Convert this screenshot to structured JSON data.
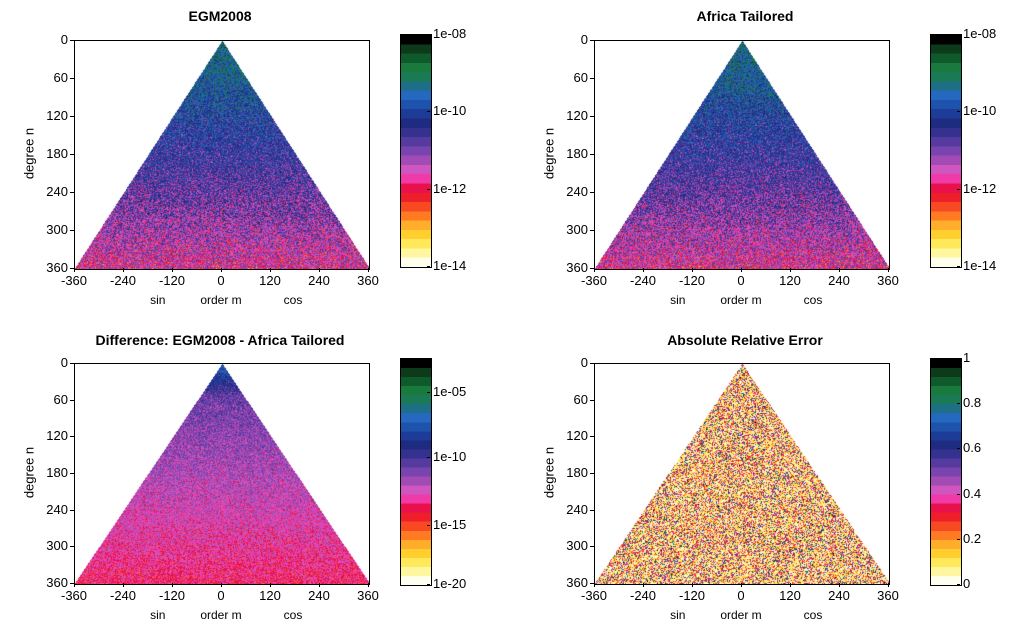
{
  "chart_data": [
    {
      "type": "heatmap",
      "title": "EGM2008",
      "ylabel": "degree n",
      "xlabel": "order m",
      "x_left_label": "sin",
      "x_right_label": "cos",
      "x_ticks": [
        "-360",
        "-240",
        "-120",
        "0",
        "120",
        "240",
        "360"
      ],
      "y_ticks": [
        "0",
        "60",
        "120",
        "180",
        "240",
        "300",
        "360"
      ],
      "xlim": [
        -360,
        360
      ],
      "ylim": [
        0,
        360
      ],
      "colorbar": {
        "scale": "log",
        "ticks": [
          "1e-08",
          "1e-10",
          "1e-12",
          "1e-14"
        ],
        "range": [
          1e-14,
          1e-08
        ]
      },
      "pattern": "magnitude decays with degree n; spherical-harmonic triangle"
    },
    {
      "type": "heatmap",
      "title": "Africa Tailored",
      "ylabel": "degree n",
      "xlabel": "order m",
      "x_left_label": "sin",
      "x_right_label": "cos",
      "x_ticks": [
        "-360",
        "-240",
        "-120",
        "0",
        "120",
        "240",
        "360"
      ],
      "y_ticks": [
        "0",
        "60",
        "120",
        "180",
        "240",
        "300",
        "360"
      ],
      "xlim": [
        -360,
        360
      ],
      "ylim": [
        0,
        360
      ],
      "colorbar": {
        "scale": "log",
        "ticks": [
          "1e-08",
          "1e-10",
          "1e-12",
          "1e-14"
        ],
        "range": [
          1e-14,
          1e-08
        ]
      },
      "pattern": "magnitude decays with degree n; spherical-harmonic triangle"
    },
    {
      "type": "heatmap",
      "title": "Difference: EGM2008 - Africa Tailored",
      "ylabel": "degree n",
      "xlabel": "order m",
      "x_left_label": "sin",
      "x_right_label": "cos",
      "x_ticks": [
        "-360",
        "-240",
        "-120",
        "0",
        "120",
        "240",
        "360"
      ],
      "y_ticks": [
        "0",
        "60",
        "120",
        "180",
        "240",
        "300",
        "360"
      ],
      "xlim": [
        -360,
        360
      ],
      "ylim": [
        0,
        360
      ],
      "colorbar": {
        "scale": "log",
        "ticks": [
          "1e-05",
          "1e-10",
          "1e-15",
          "1e-20"
        ],
        "range": [
          1e-20,
          0.001
        ]
      },
      "pattern": "mostly magenta, dark blue near top"
    },
    {
      "type": "heatmap",
      "title": "Absolute Relative Error",
      "ylabel": "degree n",
      "xlabel": "order m",
      "x_left_label": "sin",
      "x_right_label": "cos",
      "x_ticks": [
        "-360",
        "-240",
        "-120",
        "0",
        "120",
        "240",
        "360"
      ],
      "y_ticks": [
        "0",
        "60",
        "120",
        "180",
        "240",
        "300",
        "360"
      ],
      "xlim": [
        -360,
        360
      ],
      "ylim": [
        0,
        360
      ],
      "colorbar": {
        "scale": "linear",
        "ticks": [
          "1",
          "0.8",
          "0.6",
          "0.4",
          "0.2",
          "0"
        ],
        "range": [
          0,
          1
        ]
      },
      "pattern": "noisy, mostly near 0 (white/yellow) with scattered reds and blues"
    }
  ],
  "colormap": [
    "#ffffee",
    "#fff7a0",
    "#ffe85a",
    "#ffcf30",
    "#ffad2a",
    "#ff7a22",
    "#f84a22",
    "#ee1f2a",
    "#e8114a",
    "#ef3aa8",
    "#cf55c0",
    "#a24bb5",
    "#7a44ae",
    "#553a9f",
    "#34318f",
    "#1f2b80",
    "#1d3c98",
    "#1e53ad",
    "#2468bf",
    "#1e6e85",
    "#1a7a55",
    "#1a7a3d",
    "#0f5a2a",
    "#0e3a1c",
    "#000000"
  ]
}
